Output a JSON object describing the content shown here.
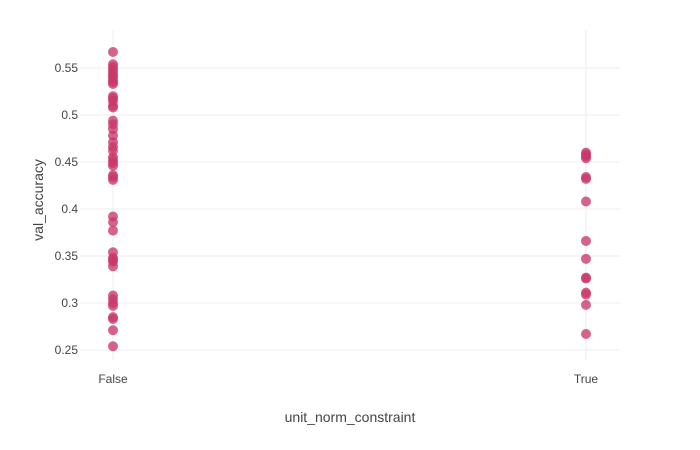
{
  "chart_data": {
    "type": "scatter",
    "title": "",
    "xlabel": "unit_norm_constraint",
    "ylabel": "val_accuracy",
    "categories": [
      "False",
      "True"
    ],
    "ylim": [
      0.235,
      0.58
    ],
    "yticks": [
      "0.25",
      "0.3",
      "0.35",
      "0.4",
      "0.45",
      "0.5",
      "0.55"
    ],
    "grid": true,
    "marker_color": "#c9376a",
    "series": [
      {
        "values": [
          [
            "False",
            0.567
          ],
          [
            "False",
            0.554
          ],
          [
            "False",
            0.551
          ],
          [
            "False",
            0.548
          ],
          [
            "False",
            0.545
          ],
          [
            "False",
            0.542
          ],
          [
            "False",
            0.54
          ],
          [
            "False",
            0.537
          ],
          [
            "False",
            0.535
          ],
          [
            "False",
            0.533
          ],
          [
            "False",
            0.52
          ],
          [
            "False",
            0.518
          ],
          [
            "False",
            0.515
          ],
          [
            "False",
            0.51
          ],
          [
            "False",
            0.508
          ],
          [
            "False",
            0.494
          ],
          [
            "False",
            0.49
          ],
          [
            "False",
            0.485
          ],
          [
            "False",
            0.478
          ],
          [
            "False",
            0.471
          ],
          [
            "False",
            0.466
          ],
          [
            "False",
            0.462
          ],
          [
            "False",
            0.455
          ],
          [
            "False",
            0.452
          ],
          [
            "False",
            0.449
          ],
          [
            "False",
            0.446
          ],
          [
            "False",
            0.436
          ],
          [
            "False",
            0.434
          ],
          [
            "False",
            0.431
          ],
          [
            "False",
            0.392
          ],
          [
            "False",
            0.386
          ],
          [
            "False",
            0.377
          ],
          [
            "False",
            0.354
          ],
          [
            "False",
            0.348
          ],
          [
            "False",
            0.346
          ],
          [
            "False",
            0.344
          ],
          [
            "False",
            0.339
          ],
          [
            "False",
            0.308
          ],
          [
            "False",
            0.304
          ],
          [
            "False",
            0.3
          ],
          [
            "False",
            0.297
          ],
          [
            "False",
            0.285
          ],
          [
            "False",
            0.283
          ],
          [
            "False",
            0.271
          ],
          [
            "False",
            0.254
          ],
          [
            "True",
            0.46
          ],
          [
            "True",
            0.458
          ],
          [
            "True",
            0.456
          ],
          [
            "True",
            0.454
          ],
          [
            "True",
            0.434
          ],
          [
            "True",
            0.432
          ],
          [
            "True",
            0.408
          ],
          [
            "True",
            0.366
          ],
          [
            "True",
            0.347
          ],
          [
            "True",
            0.327
          ],
          [
            "True",
            0.326
          ],
          [
            "True",
            0.311
          ],
          [
            "True",
            0.309
          ],
          [
            "True",
            0.298
          ],
          [
            "True",
            0.267
          ]
        ]
      }
    ]
  }
}
